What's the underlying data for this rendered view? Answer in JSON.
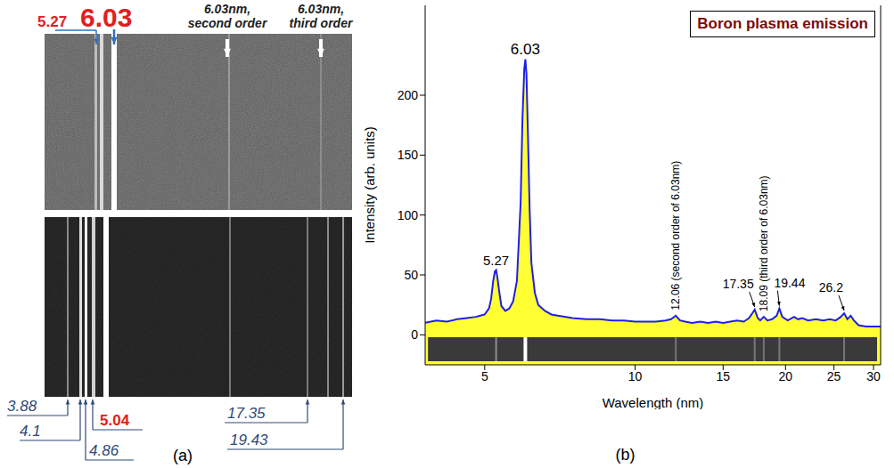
{
  "panel_a": {
    "caption": "(a)",
    "top_labels": [
      {
        "text": "5.27",
        "color": "#e02020"
      },
      {
        "text": "6.03",
        "color": "#e02020"
      }
    ],
    "order_labels": [
      "6.03nm, second order",
      "6.03nm, third order"
    ],
    "bottom_labels": [
      {
        "text": "3.88",
        "color": "#2f4a78"
      },
      {
        "text": "4.1",
        "color": "#2f4a78"
      },
      {
        "text": "5.04",
        "color": "#e02020"
      },
      {
        "text": "4.86",
        "color": "#2f4a78"
      },
      {
        "text": "17.35",
        "color": "#2f4a78"
      },
      {
        "text": "19.43",
        "color": "#2f4a78"
      }
    ]
  },
  "chart_data": {
    "type": "area",
    "caption": "(b)",
    "title": "Boron plasma emission",
    "x_label": "Wavelength (nm)",
    "y_label": "Intensity (arb. units)",
    "color": "#1f1fe6",
    "log": "x",
    "grid": false,
    "xlim": [
      3.8,
      31
    ],
    "xticks": [
      5,
      10,
      15,
      20,
      25,
      30
    ],
    "ylim": [
      -25,
      275
    ],
    "yticks": [
      0,
      50,
      100,
      150,
      200
    ],
    "x": [
      3.8,
      4.0,
      4.2,
      4.4,
      4.6,
      4.8,
      4.9,
      5.0,
      5.1,
      5.15,
      5.2,
      5.24,
      5.27,
      5.3,
      5.35,
      5.4,
      5.5,
      5.6,
      5.7,
      5.8,
      5.9,
      5.95,
      6.0,
      6.03,
      6.06,
      6.1,
      6.15,
      6.2,
      6.3,
      6.4,
      6.6,
      6.8,
      7.0,
      7.5,
      8.0,
      8.5,
      9.0,
      9.5,
      10,
      10.5,
      11,
      11.5,
      11.8,
      12.06,
      12.3,
      12.6,
      13,
      13.5,
      14,
      14.5,
      15,
      15.5,
      16,
      16.5,
      16.9,
      17.1,
      17.35,
      17.6,
      17.8,
      18.09,
      18.4,
      18.8,
      19.2,
      19.44,
      19.7,
      20.2,
      20.8,
      21.2,
      21.6,
      22.2,
      23,
      23.8,
      24.5,
      25.2,
      25.8,
      26.2,
      26.6,
      27,
      27.4,
      28,
      29,
      30,
      31
    ],
    "values": [
      10,
      12,
      11,
      13,
      14,
      15,
      16,
      17,
      22,
      30,
      45,
      53,
      54,
      48,
      35,
      24,
      20,
      22,
      28,
      45,
      110,
      180,
      222,
      230,
      218,
      170,
      105,
      60,
      35,
      25,
      20,
      17,
      16,
      14,
      13,
      13,
      12,
      12,
      11,
      11,
      11,
      12,
      13,
      16,
      12,
      11,
      10,
      11,
      10,
      11,
      10,
      11,
      12,
      11,
      14,
      17,
      21,
      14,
      12,
      15,
      12,
      13,
      16,
      22,
      15,
      12,
      15,
      13,
      14,
      12,
      13,
      12,
      13,
      12,
      15,
      18,
      13,
      16,
      12,
      8,
      7,
      7,
      7
    ],
    "annotations": [
      {
        "x": 5.27,
        "y": 54,
        "label": "5.27"
      },
      {
        "x": 6.03,
        "y": 230,
        "label": "6.03"
      },
      {
        "x": 12.06,
        "y": 16,
        "label": "12.06 (second order of 6.03nm)"
      },
      {
        "x": 17.35,
        "y": 21,
        "label": "17.35"
      },
      {
        "x": 18.09,
        "y": 15,
        "label": "18.09 (third order of 6.03nm)"
      },
      {
        "x": 19.44,
        "y": 22,
        "label": "19.44"
      },
      {
        "x": 26.2,
        "y": 18,
        "label": "26.2"
      }
    ],
    "image_strip": {
      "xlim": [
        3.85,
        30.5
      ],
      "ylim": [
        -22,
        -2
      ]
    }
  }
}
